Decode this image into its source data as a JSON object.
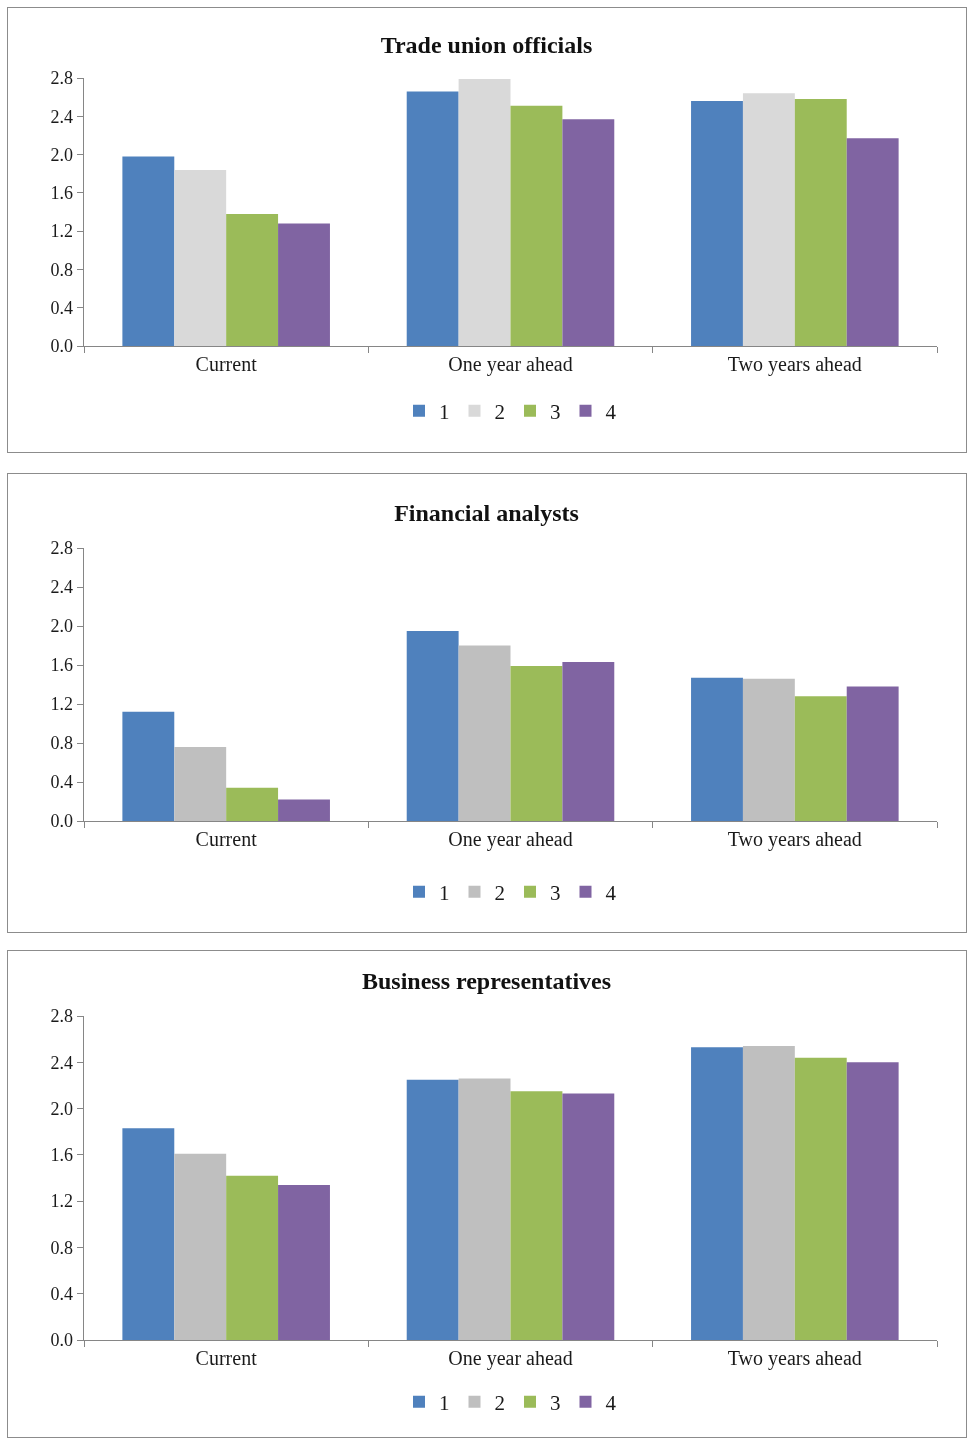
{
  "chart_data": [
    {
      "type": "bar",
      "title": "Trade union officials",
      "categories": [
        "Current",
        "One year ahead",
        "Two years ahead"
      ],
      "series": [
        {
          "name": "1",
          "color": "#4f81bd",
          "values": [
            1.98,
            2.66,
            2.56
          ]
        },
        {
          "name": "2",
          "color": "#d9d9d9",
          "values": [
            1.84,
            2.79,
            2.64
          ]
        },
        {
          "name": "3",
          "color": "#9bbb59",
          "values": [
            1.38,
            2.51,
            2.58
          ]
        },
        {
          "name": "4",
          "color": "#8064a2",
          "values": [
            1.28,
            2.37,
            2.17
          ]
        }
      ],
      "ylim": [
        0,
        2.8
      ],
      "yticks": [
        {
          "value": 0,
          "label": "0.0"
        },
        {
          "value": 0.4,
          "label": "0.4"
        },
        {
          "value": 0.8,
          "label": "0.8"
        },
        {
          "value": 1.2,
          "label": "1.2"
        },
        {
          "value": 1.6,
          "label": "1.6"
        },
        {
          "value": 2,
          "label": "2.0"
        },
        {
          "value": 2.4,
          "label": "2.4"
        },
        {
          "value": 2.8,
          "label": "2.8"
        }
      ],
      "legend": "bottom"
    },
    {
      "type": "bar",
      "title": "Financial analysts",
      "categories": [
        "Current",
        "One year ahead",
        "Two years ahead"
      ],
      "series": [
        {
          "name": "1",
          "color": "#4f81bd",
          "values": [
            1.12,
            1.95,
            1.47
          ]
        },
        {
          "name": "2",
          "color": "#bfbfbf",
          "values": [
            0.76,
            1.8,
            1.46
          ]
        },
        {
          "name": "3",
          "color": "#9bbb59",
          "values": [
            0.34,
            1.59,
            1.28
          ]
        },
        {
          "name": "4",
          "color": "#8064a2",
          "values": [
            0.22,
            1.63,
            1.38
          ]
        }
      ],
      "ylim": [
        0,
        2.8
      ],
      "yticks": [
        {
          "value": 0,
          "label": "0.0"
        },
        {
          "value": 0.4,
          "label": "0.4"
        },
        {
          "value": 0.8,
          "label": "0.8"
        },
        {
          "value": 1.2,
          "label": "1.2"
        },
        {
          "value": 1.6,
          "label": "1.6"
        },
        {
          "value": 2,
          "label": "2.0"
        },
        {
          "value": 2.4,
          "label": "2.4"
        },
        {
          "value": 2.8,
          "label": "2.8"
        }
      ],
      "legend": "bottom"
    },
    {
      "type": "bar",
      "title": "Business representatives",
      "categories": [
        "Current",
        "One year ahead",
        "Two years ahead"
      ],
      "series": [
        {
          "name": "1",
          "color": "#4f81bd",
          "values": [
            1.83,
            2.25,
            2.53
          ]
        },
        {
          "name": "2",
          "color": "#bfbfbf",
          "values": [
            1.61,
            2.26,
            2.54
          ]
        },
        {
          "name": "3",
          "color": "#9bbb59",
          "values": [
            1.42,
            2.15,
            2.44
          ]
        },
        {
          "name": "4",
          "color": "#8064a2",
          "values": [
            1.34,
            2.13,
            2.4
          ]
        }
      ],
      "ylim": [
        0,
        2.8
      ],
      "yticks": [
        {
          "value": 0,
          "label": "0.0"
        },
        {
          "value": 0.4,
          "label": "0.4"
        },
        {
          "value": 0.8,
          "label": "0.8"
        },
        {
          "value": 1.2,
          "label": "1.2"
        },
        {
          "value": 1.6,
          "label": "1.6"
        },
        {
          "value": 2,
          "label": "2.0"
        },
        {
          "value": 2.4,
          "label": "2.4"
        },
        {
          "value": 2.8,
          "label": "2.8"
        }
      ],
      "legend": "bottom"
    }
  ]
}
